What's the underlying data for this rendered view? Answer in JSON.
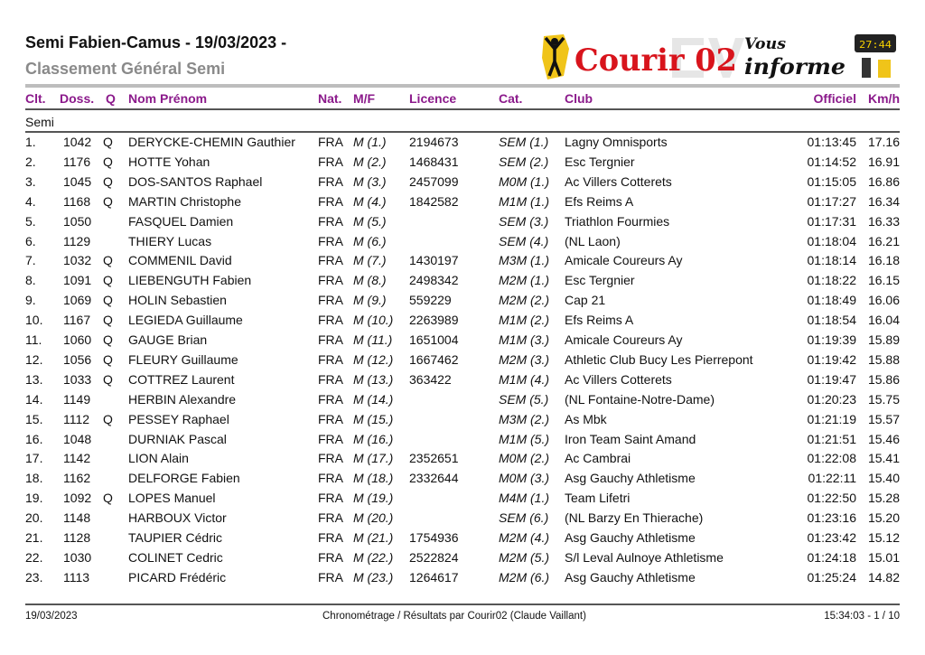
{
  "header": {
    "title": "Semi Fabien-Camus  - 19/03/2023 -",
    "subtitle": "Classement Général Semi"
  },
  "logo": {
    "text": "Courir 02",
    "tagline_1": "Vous",
    "tagline_2": "informe",
    "timer": "27:44",
    "brand_color": "#d8141c"
  },
  "columns": [
    "Clt.",
    "Doss.",
    "Q",
    "Nom Prénom",
    "Nat.",
    "M/F",
    "Licence",
    "Cat.",
    "Club",
    "Officiel",
    "Km/h"
  ],
  "header_color": "#8b1a8b",
  "section": "Semi",
  "rows": [
    [
      "1.",
      "1042",
      "Q",
      "DERYCKE-CHEMIN Gauthier",
      "FRA",
      "M (1.)",
      "2194673",
      "SEM (1.)",
      "Lagny Omnisports",
      "01:13:45",
      "17.16"
    ],
    [
      "2.",
      "1176",
      "Q",
      "HOTTE Yohan",
      "FRA",
      "M (2.)",
      "1468431",
      "SEM (2.)",
      "Esc Tergnier",
      "01:14:52",
      "16.91"
    ],
    [
      "3.",
      "1045",
      "Q",
      "DOS-SANTOS Raphael",
      "FRA",
      "M (3.)",
      "2457099",
      "M0M (1.)",
      "Ac Villers Cotterets",
      "01:15:05",
      "16.86"
    ],
    [
      "4.",
      "1168",
      "Q",
      "MARTIN Christophe",
      "FRA",
      "M (4.)",
      "1842582",
      "M1M (1.)",
      "Efs Reims A",
      "01:17:27",
      "16.34"
    ],
    [
      "5.",
      "1050",
      "",
      "FASQUEL Damien",
      "FRA",
      "M (5.)",
      "",
      "SEM (3.)",
      "Triathlon Fourmies",
      "01:17:31",
      "16.33"
    ],
    [
      "6.",
      "1129",
      "",
      "THIERY Lucas",
      "FRA",
      "M (6.)",
      "",
      "SEM (4.)",
      "(NL Laon)",
      "01:18:04",
      "16.21"
    ],
    [
      "7.",
      "1032",
      "Q",
      "COMMENIL David",
      "FRA",
      "M (7.)",
      "1430197",
      "M3M (1.)",
      "Amicale Coureurs Ay",
      "01:18:14",
      "16.18"
    ],
    [
      "8.",
      "1091",
      "Q",
      "LIEBENGUTH Fabien",
      "FRA",
      "M (8.)",
      "2498342",
      "M2M (1.)",
      "Esc Tergnier",
      "01:18:22",
      "16.15"
    ],
    [
      "9.",
      "1069",
      "Q",
      "HOLIN Sebastien",
      "FRA",
      "M (9.)",
      "559229",
      "M2M (2.)",
      "Cap 21",
      "01:18:49",
      "16.06"
    ],
    [
      "10.",
      "1167",
      "Q",
      "LEGIEDA Guillaume",
      "FRA",
      "M (10.)",
      "2263989",
      "M1M (2.)",
      "Efs Reims A",
      "01:18:54",
      "16.04"
    ],
    [
      "11.",
      "1060",
      "Q",
      "GAUGE Brian",
      "FRA",
      "M (11.)",
      "1651004",
      "M1M (3.)",
      "Amicale Coureurs Ay",
      "01:19:39",
      "15.89"
    ],
    [
      "12.",
      "1056",
      "Q",
      "FLEURY Guillaume",
      "FRA",
      "M (12.)",
      "1667462",
      "M2M (3.)",
      "Athletic Club Bucy Les Pierrepont",
      "01:19:42",
      "15.88"
    ],
    [
      "13.",
      "1033",
      "Q",
      "COTTREZ Laurent",
      "FRA",
      "M (13.)",
      "363422",
      "M1M (4.)",
      "Ac Villers Cotterets",
      "01:19:47",
      "15.86"
    ],
    [
      "14.",
      "1149",
      "",
      "HERBIN Alexandre",
      "FRA",
      "M (14.)",
      "",
      "SEM (5.)",
      "(NL Fontaine-Notre-Dame)",
      "01:20:23",
      "15.75"
    ],
    [
      "15.",
      "1112",
      "Q",
      "PESSEY Raphael",
      "FRA",
      "M (15.)",
      "",
      "M3M (2.)",
      "As Mbk",
      "01:21:19",
      "15.57"
    ],
    [
      "16.",
      "1048",
      "",
      "DURNIAK Pascal",
      "FRA",
      "M (16.)",
      "",
      "M1M (5.)",
      "Iron Team Saint Amand",
      "01:21:51",
      "15.46"
    ],
    [
      "17.",
      "1142",
      "",
      "LION Alain",
      "FRA",
      "M (17.)",
      "2352651",
      "M0M (2.)",
      "Ac Cambrai",
      "01:22:08",
      "15.41"
    ],
    [
      "18.",
      "1162",
      "",
      "DELFORGE Fabien",
      "FRA",
      "M (18.)",
      "2332644",
      "M0M (3.)",
      "Asg Gauchy Athletisme",
      "01:22:11",
      "15.40"
    ],
    [
      "19.",
      "1092",
      "Q",
      "LOPES Manuel",
      "FRA",
      "M (19.)",
      "",
      "M4M (1.)",
      "Team Lifetri",
      "01:22:50",
      "15.28"
    ],
    [
      "20.",
      "1148",
      "",
      "HARBOUX Victor",
      "FRA",
      "M (20.)",
      "",
      "SEM (6.)",
      "(NL Barzy En Thierache)",
      "01:23:16",
      "15.20"
    ],
    [
      "21.",
      "1128",
      "",
      "TAUPIER Cédric",
      "FRA",
      "M (21.)",
      "1754936",
      "M2M (4.)",
      "Asg Gauchy Athletisme",
      "01:23:42",
      "15.12"
    ],
    [
      "22.",
      "1030",
      "",
      "COLINET Cedric",
      "FRA",
      "M (22.)",
      "2522824",
      "M2M (5.)",
      "S/l Leval Aulnoye Athletisme",
      "01:24:18",
      "15.01"
    ],
    [
      "23.",
      "1113",
      "",
      "PICARD Frédéric",
      "FRA",
      "M (23.)",
      "1264617",
      "M2M (6.)",
      "Asg Gauchy Athletisme",
      "01:25:24",
      "14.82"
    ]
  ],
  "footer": {
    "date": "19/03/2023",
    "credit": "Chronométrage / Résultats par Courir02 (Claude Vaillant)",
    "time_page": "15:34:03  -  1 / 10"
  }
}
